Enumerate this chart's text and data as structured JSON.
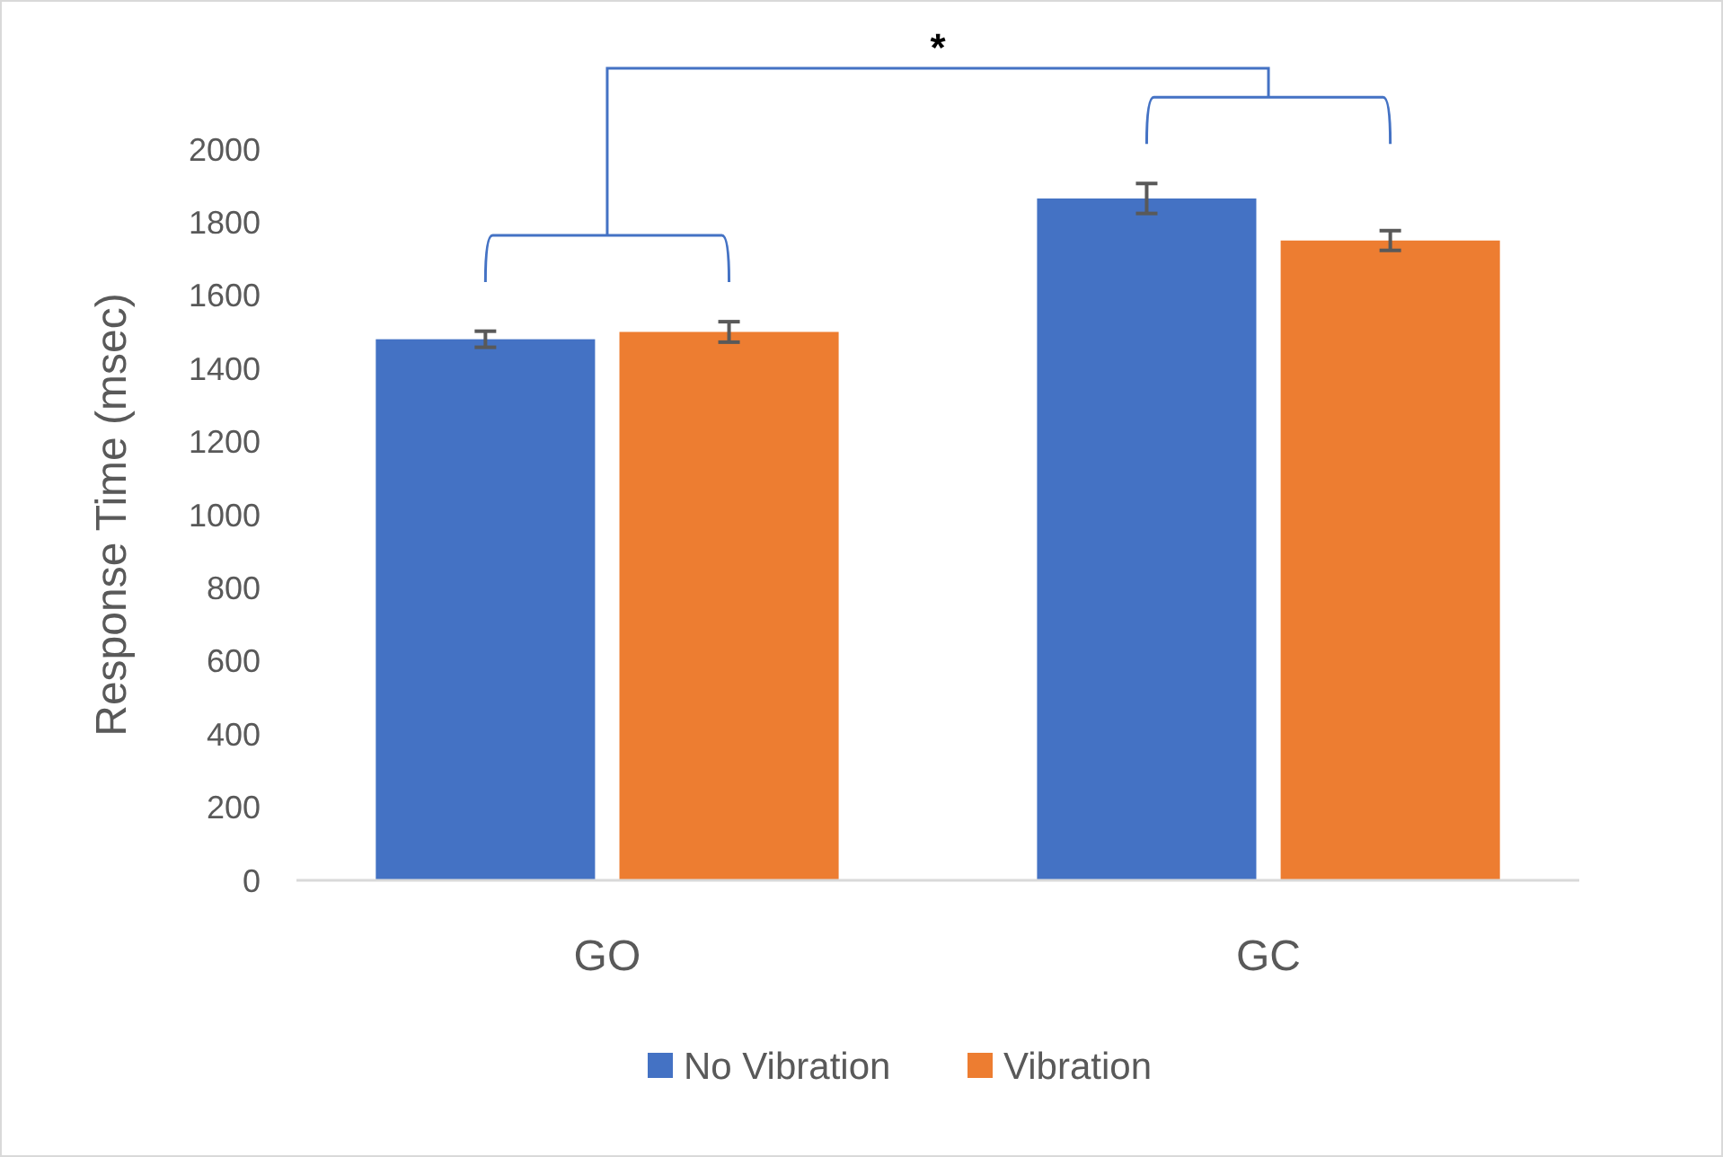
{
  "chart_data": {
    "type": "bar",
    "ylabel": "Response Time (msec)",
    "categories": [
      "GO",
      "GC"
    ],
    "series": [
      {
        "name": "No Vibration",
        "color": "#4472c4",
        "values": [
          1480,
          1865
        ],
        "errors": [
          22,
          41
        ]
      },
      {
        "name": "Vibration",
        "color": "#ed7d31",
        "values": [
          1500,
          1750
        ],
        "errors": [
          28,
          27
        ]
      }
    ],
    "ylim": [
      0,
      2000
    ],
    "yticks": [
      0,
      200,
      400,
      600,
      800,
      1000,
      1200,
      1400,
      1600,
      1800,
      2000
    ],
    "grid": false,
    "legend": "bottom",
    "annotations": [
      "*"
    ]
  }
}
